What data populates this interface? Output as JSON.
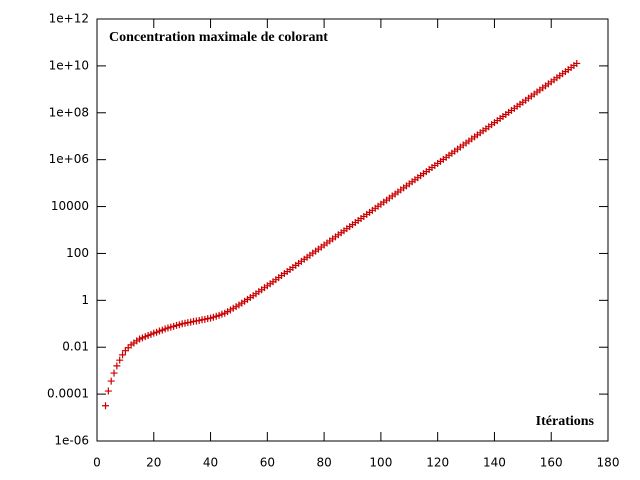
{
  "chart_data": {
    "type": "scatter",
    "title": "Concentration maximale de colorant",
    "x_label": "Itérations",
    "xlim": [
      0,
      180
    ],
    "xticks": [
      0,
      20,
      40,
      60,
      80,
      100,
      120,
      140,
      160,
      180
    ],
    "ylim": [
      1e-06,
      1000000000000.0
    ],
    "log_y": true,
    "yticks": [
      {
        "value": 1e-06,
        "label": "1e-06"
      },
      0.0001,
      0.01,
      1,
      100,
      10000,
      {
        "value": 1000000.0,
        "label": "1e+06"
      },
      {
        "value": 100000000.0,
        "label": "1e+08"
      },
      {
        "value": 10000000000.0,
        "label": "1e+10"
      },
      {
        "value": 1000000000000.0,
        "label": "1e+12"
      }
    ],
    "color": "#cc0000",
    "marker": "plus",
    "x": [
      3,
      4,
      5,
      6,
      7,
      8,
      9,
      10,
      11,
      12,
      13,
      14,
      15,
      16,
      17,
      18,
      19,
      20,
      21,
      22,
      23,
      24,
      25,
      26,
      27,
      28,
      29,
      30,
      31,
      32,
      33,
      34,
      35,
      36,
      37,
      38,
      39,
      40,
      41,
      42,
      43,
      44,
      45,
      46,
      47,
      48,
      49,
      50,
      51,
      52,
      53,
      54,
      55,
      56,
      57,
      58,
      59,
      60,
      61,
      62,
      63,
      64,
      65,
      66,
      67,
      68,
      69,
      70,
      71,
      72,
      73,
      74,
      75,
      76,
      77,
      78,
      79,
      80,
      81,
      82,
      83,
      84,
      85,
      86,
      87,
      88,
      89,
      90,
      91,
      92,
      93,
      94,
      95,
      96,
      97,
      98,
      99,
      100,
      101,
      102,
      103,
      104,
      105,
      106,
      107,
      108,
      109,
      110,
      111,
      112,
      113,
      114,
      115,
      116,
      117,
      118,
      119,
      120,
      121,
      122,
      123,
      124,
      125,
      126,
      127,
      128,
      129,
      130,
      131,
      132,
      133,
      134,
      135,
      136,
      137,
      138,
      139,
      140,
      141,
      142,
      143,
      144,
      145,
      146,
      147,
      148,
      149,
      150,
      151,
      152,
      153,
      154,
      155,
      156,
      157,
      158,
      159,
      160,
      161,
      162,
      163,
      164,
      165,
      166,
      167,
      168,
      169
    ],
    "values": [
      3.2e-05,
      0.000135,
      0.00036,
      0.00079,
      0.0016,
      0.0028,
      0.0047,
      0.0071,
      0.0095,
      0.0126,
      0.0151,
      0.0186,
      0.0224,
      0.0251,
      0.0282,
      0.0316,
      0.0355,
      0.0398,
      0.0437,
      0.049,
      0.0537,
      0.0603,
      0.0661,
      0.0724,
      0.0776,
      0.0851,
      0.0912,
      0.1,
      0.105,
      0.112,
      0.117,
      0.126,
      0.132,
      0.138,
      0.148,
      0.155,
      0.166,
      0.174,
      0.191,
      0.209,
      0.229,
      0.257,
      0.282,
      0.331,
      0.389,
      0.457,
      0.537,
      0.631,
      0.759,
      0.912,
      1.1,
      1.32,
      1.58,
      1.91,
      2.34,
      2.82,
      3.47,
      4.17,
      5.09,
      6.22,
      7.6,
      9.29,
      11.4,
      13.9,
      16.9,
      20.7,
      25.3,
      30.9,
      37.8,
      46.1,
      56.4,
      68.9,
      84.1,
      103,
      126,
      153,
      187,
      229,
      280,
      342,
      418,
      511,
      624,
      762,
      931,
      1140,
      1390,
      1700,
      2080,
      2540,
      3100,
      3780,
      4620,
      5650,
      6900,
      8430,
      10300,
      12600,
      15400,
      18800,
      23000,
      28100,
      34300,
      41900,
      51200,
      62500,
      76400,
      93300,
      114000.0,
      139000.0,
      170000.0,
      208000.0,
      254000.0,
      310000.0,
      379000.0,
      463000.0,
      566000.0,
      692000.0,
      845000.0,
      1030000.0,
      1260000.0,
      1540000.0,
      1880000.0,
      2300000.0,
      2810000.0,
      3440000.0,
      4200000.0,
      5130000.0,
      6270000.0,
      7660000.0,
      9350000.0,
      11400000.0,
      14000000.0,
      17100000.0,
      20800000.0,
      25500000.0,
      31100000.0,
      38000000.0,
      46500000.0,
      56800000.0,
      69300000.0,
      84700000.0,
      104000000.0,
      126000000.0,
      155000000.0,
      189000000.0,
      231000000.0,
      282000000.0,
      344000000.0,
      421000000.0,
      514000000.0,
      628000000.0,
      767000000.0,
      938000000.0,
      1150000000.0,
      1400000000.0,
      1710000000.0,
      2090000000.0,
      2550000000.0,
      3120000000.0,
      3810000000.0,
      4660000000.0,
      5690000000.0,
      6950000000.0,
      8490000000.0,
      10400000000.0,
      12700000000.0
    ]
  }
}
